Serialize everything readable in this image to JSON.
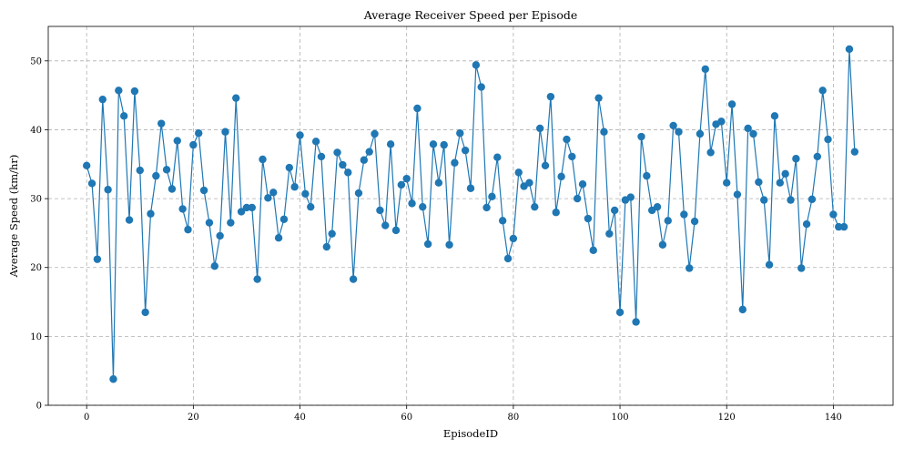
{
  "chart_data": {
    "type": "line",
    "title": "Average Receiver Speed per Episode",
    "xlabel": "EpisodeID",
    "ylabel": "Average Speed (km/hr)",
    "xlim": [
      -7.2,
      151.2
    ],
    "ylim": [
      0,
      55
    ],
    "xticks": [
      0,
      20,
      40,
      60,
      80,
      100,
      120,
      140
    ],
    "yticks": [
      0,
      10,
      20,
      30,
      40,
      50
    ],
    "grid": true,
    "series": [
      {
        "name": "Average Speed",
        "color": "#1f77b4",
        "marker": "circle",
        "x": [
          0,
          1,
          2,
          3,
          4,
          5,
          6,
          7,
          8,
          9,
          10,
          11,
          12,
          13,
          14,
          15,
          16,
          17,
          18,
          19,
          20,
          21,
          22,
          23,
          24,
          25,
          26,
          27,
          28,
          29,
          30,
          31,
          32,
          33,
          34,
          35,
          36,
          37,
          38,
          39,
          40,
          41,
          42,
          43,
          44,
          45,
          46,
          47,
          48,
          49,
          50,
          51,
          52,
          53,
          54,
          55,
          56,
          57,
          58,
          59,
          60,
          61,
          62,
          63,
          64,
          65,
          66,
          67,
          68,
          69,
          70,
          71,
          72,
          73,
          74,
          75,
          76,
          77,
          78,
          79,
          80,
          81,
          82,
          83,
          84,
          85,
          86,
          87,
          88,
          89,
          90,
          91,
          92,
          93,
          94,
          95,
          96,
          97,
          98,
          99,
          100,
          101,
          102,
          103,
          104,
          105,
          106,
          107,
          108,
          109,
          110,
          111,
          112,
          113,
          114,
          115,
          116,
          117,
          118,
          119,
          120,
          121,
          122,
          123,
          124,
          125,
          126,
          127,
          128,
          129,
          130,
          131,
          132,
          133,
          134,
          135,
          136,
          137,
          138,
          139,
          140,
          141,
          142,
          143,
          144
        ],
        "values": [
          34.8,
          32.2,
          21.2,
          44.4,
          31.3,
          3.8,
          45.7,
          42.0,
          26.9,
          45.6,
          34.1,
          13.5,
          27.8,
          33.3,
          40.9,
          34.2,
          31.4,
          38.4,
          28.5,
          25.5,
          37.8,
          39.5,
          31.2,
          26.5,
          20.2,
          24.6,
          39.7,
          26.5,
          44.6,
          28.1,
          28.7,
          28.7,
          18.3,
          35.7,
          30.1,
          30.9,
          24.3,
          27.0,
          34.5,
          31.7,
          39.2,
          30.7,
          28.8,
          38.3,
          36.1,
          23.0,
          24.9,
          36.7,
          34.9,
          33.8,
          18.3,
          30.8,
          35.6,
          36.8,
          39.4,
          28.3,
          26.1,
          37.9,
          25.4,
          32.0,
          32.9,
          29.3,
          43.1,
          28.8,
          23.4,
          37.9,
          32.3,
          37.8,
          23.3,
          35.2,
          39.5,
          37.0,
          31.5,
          49.4,
          46.2,
          28.7,
          30.3,
          36.0,
          26.8,
          21.3,
          24.2,
          33.8,
          31.8,
          32.3,
          28.8,
          40.2,
          34.8,
          44.8,
          28.0,
          33.2,
          38.6,
          36.1,
          30.0,
          32.1,
          27.1,
          22.5,
          44.6,
          39.7,
          24.9,
          28.3,
          13.5,
          29.8,
          30.2,
          12.1,
          39.0,
          33.3,
          28.3,
          28.8,
          23.3,
          26.8,
          40.6,
          39.7,
          27.7,
          19.9,
          26.7,
          39.4,
          48.8,
          36.7,
          40.8,
          41.2,
          32.3,
          43.7,
          30.6,
          13.9,
          40.2,
          39.4,
          32.4,
          29.8,
          20.4,
          42.0,
          32.3,
          33.6,
          29.8,
          35.8,
          19.9,
          26.3,
          29.9,
          36.1,
          45.7,
          38.6,
          27.7,
          25.9,
          25.9,
          51.7,
          36.8
        ]
      }
    ]
  }
}
